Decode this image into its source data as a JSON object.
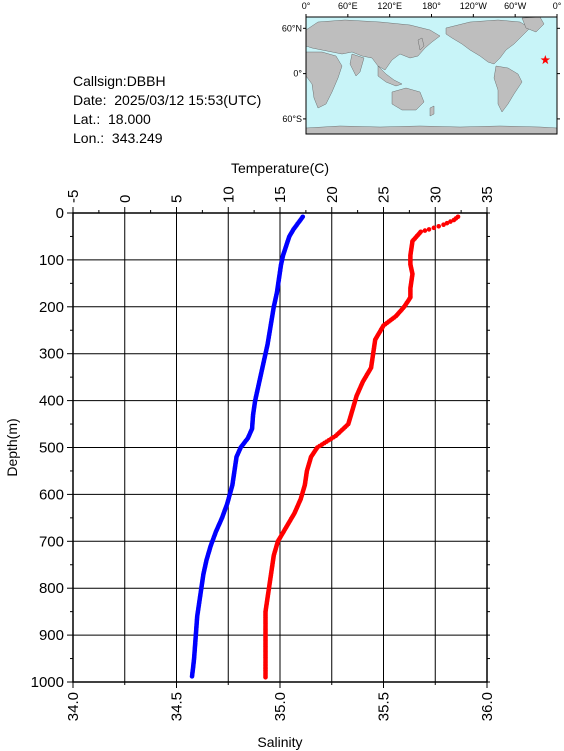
{
  "info": {
    "callsign": "Callsign:DBBH",
    "date": "Date:  2025/03/12 15:53(UTC)",
    "lat": "Lat.:  18.000",
    "lon": "Lon.:  343.249"
  },
  "map": {
    "top_labels": [
      "0°",
      "60°E",
      "120°E",
      "180°",
      "120°W",
      "60°W",
      "0°"
    ],
    "left_labels": [
      "60°N",
      "0°",
      "60°S"
    ],
    "ocean_color": "#c8f4f8",
    "land_color": "#bebebe",
    "marker_color": "#ff0000",
    "marker": {
      "lat": 18.0,
      "lon": 343.249
    }
  },
  "chart_data": {
    "type": "scatter",
    "ylabel": "Depth(m)",
    "y_ticks": [
      0,
      100,
      200,
      300,
      400,
      500,
      600,
      700,
      800,
      900,
      1000
    ],
    "ylim": [
      0,
      1000
    ],
    "temperature_axis": {
      "label": "Temperature(C)",
      "range": [
        -5,
        35
      ],
      "ticks": [
        -5,
        0,
        5,
        10,
        15,
        20,
        25,
        30,
        35
      ]
    },
    "salinity_axis": {
      "label": "Salinity",
      "range": [
        34.0,
        36.0
      ],
      "ticks": [
        "34.0",
        "34.5",
        "35.0",
        "35.5",
        "36.0"
      ]
    },
    "grid": true,
    "series": [
      {
        "color": "#0000ff",
        "axis": "temperature",
        "points": [
          [
            17.2,
            8
          ],
          [
            16.8,
            20
          ],
          [
            16.3,
            35
          ],
          [
            15.9,
            50
          ],
          [
            15.6,
            70
          ],
          [
            15.3,
            90
          ],
          [
            15.1,
            110
          ],
          [
            14.9,
            140
          ],
          [
            14.7,
            170
          ],
          [
            14.4,
            200
          ],
          [
            14.1,
            240
          ],
          [
            13.8,
            280
          ],
          [
            13.5,
            310
          ],
          [
            13.2,
            340
          ],
          [
            12.9,
            370
          ],
          [
            12.6,
            400
          ],
          [
            12.4,
            430
          ],
          [
            12.3,
            460
          ],
          [
            11.9,
            480
          ],
          [
            11.2,
            500
          ],
          [
            10.8,
            520
          ],
          [
            10.6,
            550
          ],
          [
            10.4,
            580
          ],
          [
            9.9,
            620
          ],
          [
            9.4,
            650
          ],
          [
            8.8,
            680
          ],
          [
            8.3,
            710
          ],
          [
            7.9,
            740
          ],
          [
            7.6,
            770
          ],
          [
            7.4,
            800
          ],
          [
            7.2,
            830
          ],
          [
            7.0,
            860
          ],
          [
            6.9,
            890
          ],
          [
            6.8,
            920
          ],
          [
            6.7,
            950
          ],
          [
            6.6,
            970
          ],
          [
            6.5,
            988
          ]
        ]
      },
      {
        "color": "#ff0000",
        "axis": "salinity",
        "points": [
          [
            35.86,
            8
          ],
          [
            35.84,
            15
          ],
          [
            35.79,
            25
          ],
          [
            35.72,
            35
          ],
          [
            35.68,
            40
          ],
          [
            35.64,
            60
          ],
          [
            35.63,
            90
          ],
          [
            35.63,
            110
          ],
          [
            35.64,
            130
          ],
          [
            35.63,
            160
          ],
          [
            35.63,
            180
          ],
          [
            35.6,
            200
          ],
          [
            35.56,
            220
          ],
          [
            35.5,
            240
          ],
          [
            35.46,
            270
          ],
          [
            35.45,
            300
          ],
          [
            35.44,
            330
          ],
          [
            35.4,
            360
          ],
          [
            35.37,
            390
          ],
          [
            35.35,
            420
          ],
          [
            35.33,
            450
          ],
          [
            35.27,
            475
          ],
          [
            35.18,
            500
          ],
          [
            35.15,
            520
          ],
          [
            35.13,
            550
          ],
          [
            35.12,
            580
          ],
          [
            35.1,
            610
          ],
          [
            35.07,
            640
          ],
          [
            35.03,
            670
          ],
          [
            34.99,
            700
          ],
          [
            34.97,
            730
          ],
          [
            34.96,
            760
          ],
          [
            34.95,
            790
          ],
          [
            34.94,
            820
          ],
          [
            34.93,
            850
          ],
          [
            34.93,
            900
          ],
          [
            34.93,
            950
          ],
          [
            34.93,
            990
          ]
        ]
      }
    ]
  }
}
